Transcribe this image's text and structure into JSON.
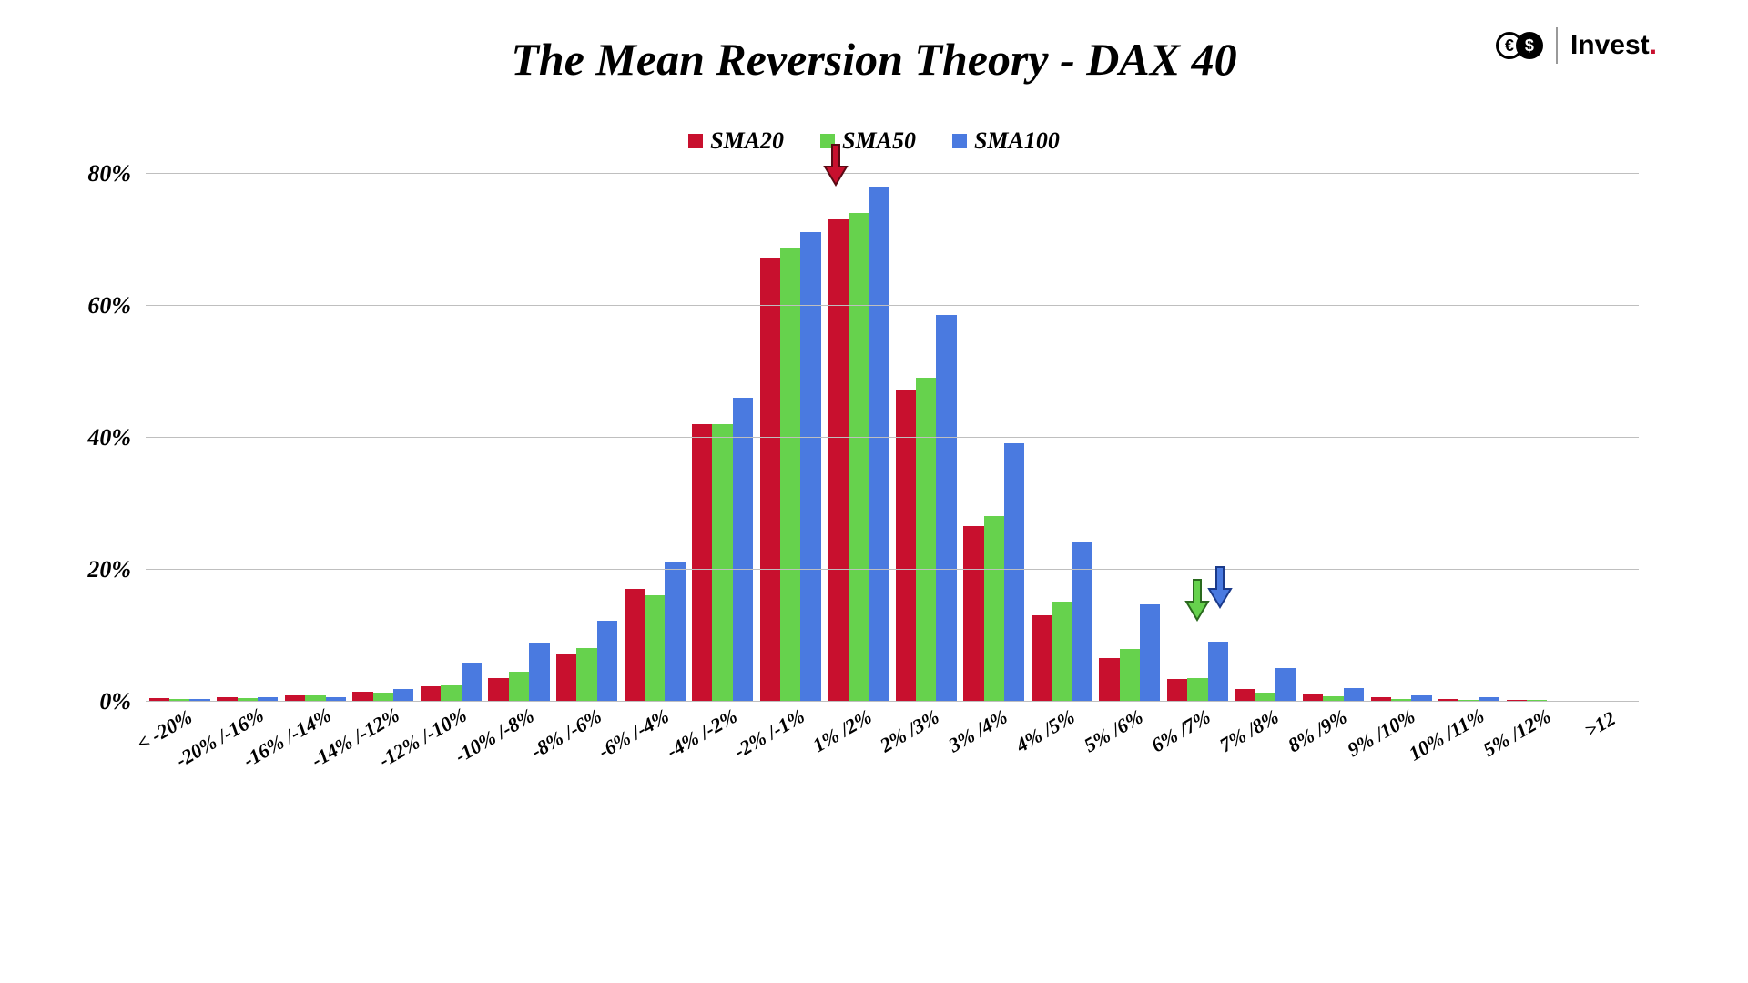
{
  "title": "The Mean Reversion Theory - DAX 40",
  "logo": {
    "label": "Invest",
    "dot": "."
  },
  "chart": {
    "type": "bar",
    "ylim": [
      0,
      80
    ],
    "ytick_step": 20,
    "y_suffix": "%",
    "grid_color": "#bfbfbf",
    "background_color": "#ffffff",
    "title_fontsize": 50,
    "label_fontsize": 26,
    "xlabel_fontsize": 22,
    "xlabel_rotation_deg": -30,
    "bar_group_gap_pct": 0,
    "categories": [
      "< -20%",
      "-20% /-16%",
      "-16% /-14%",
      "-14% /-12%",
      "-12% /-10%",
      "-10% /-8%",
      "-8% /-6%",
      "-6% /-4%",
      "-4% /-2%",
      "-2% /-1%",
      "1% /2%",
      "2% /3%",
      "3% /4%",
      "4% /5%",
      "5% /6%",
      "6% /7%",
      "7% /8%",
      "8% /9%",
      "9% /10%",
      "10% /11%",
      "5% /12%",
      ">12"
    ],
    "series": [
      {
        "name": "SMA20",
        "color": "#c8102e",
        "values": [
          0.4,
          0.6,
          0.8,
          1.4,
          2.2,
          3.4,
          7.0,
          17.0,
          42.0,
          67.0,
          73.0,
          47.0,
          26.5,
          13.0,
          6.5,
          3.3,
          1.8,
          0.9,
          0.5,
          0.3,
          0.1,
          0.0
        ]
      },
      {
        "name": "SMA50",
        "color": "#66d24d",
        "values": [
          0.3,
          0.4,
          0.8,
          1.2,
          2.4,
          4.4,
          8.0,
          16.0,
          42.0,
          68.5,
          74.0,
          49.0,
          28.0,
          15.0,
          7.8,
          3.5,
          1.2,
          0.7,
          0.3,
          0.2,
          0.1,
          0.0
        ]
      },
      {
        "name": "SMA100",
        "color": "#4a7ae0",
        "values": [
          0.3,
          0.5,
          0.6,
          1.8,
          5.8,
          8.8,
          12.2,
          21.0,
          46.0,
          71.0,
          78.0,
          58.5,
          39.0,
          24.0,
          14.6,
          9.0,
          5.0,
          2.0,
          0.8,
          0.5,
          0.0,
          0.0
        ]
      }
    ],
    "arrows": [
      {
        "color": "#c8102e",
        "category_index": 10,
        "series_index": 0,
        "y_value": 78,
        "stroke": "#5a0a14"
      },
      {
        "color": "#66d24d",
        "category_index": 15,
        "series_index": 1,
        "y_value": 12,
        "stroke": "#2a6a1e"
      },
      {
        "color": "#4a7ae0",
        "category_index": 15,
        "series_index": 2,
        "y_value": 14,
        "stroke": "#1b3a8a"
      }
    ]
  }
}
